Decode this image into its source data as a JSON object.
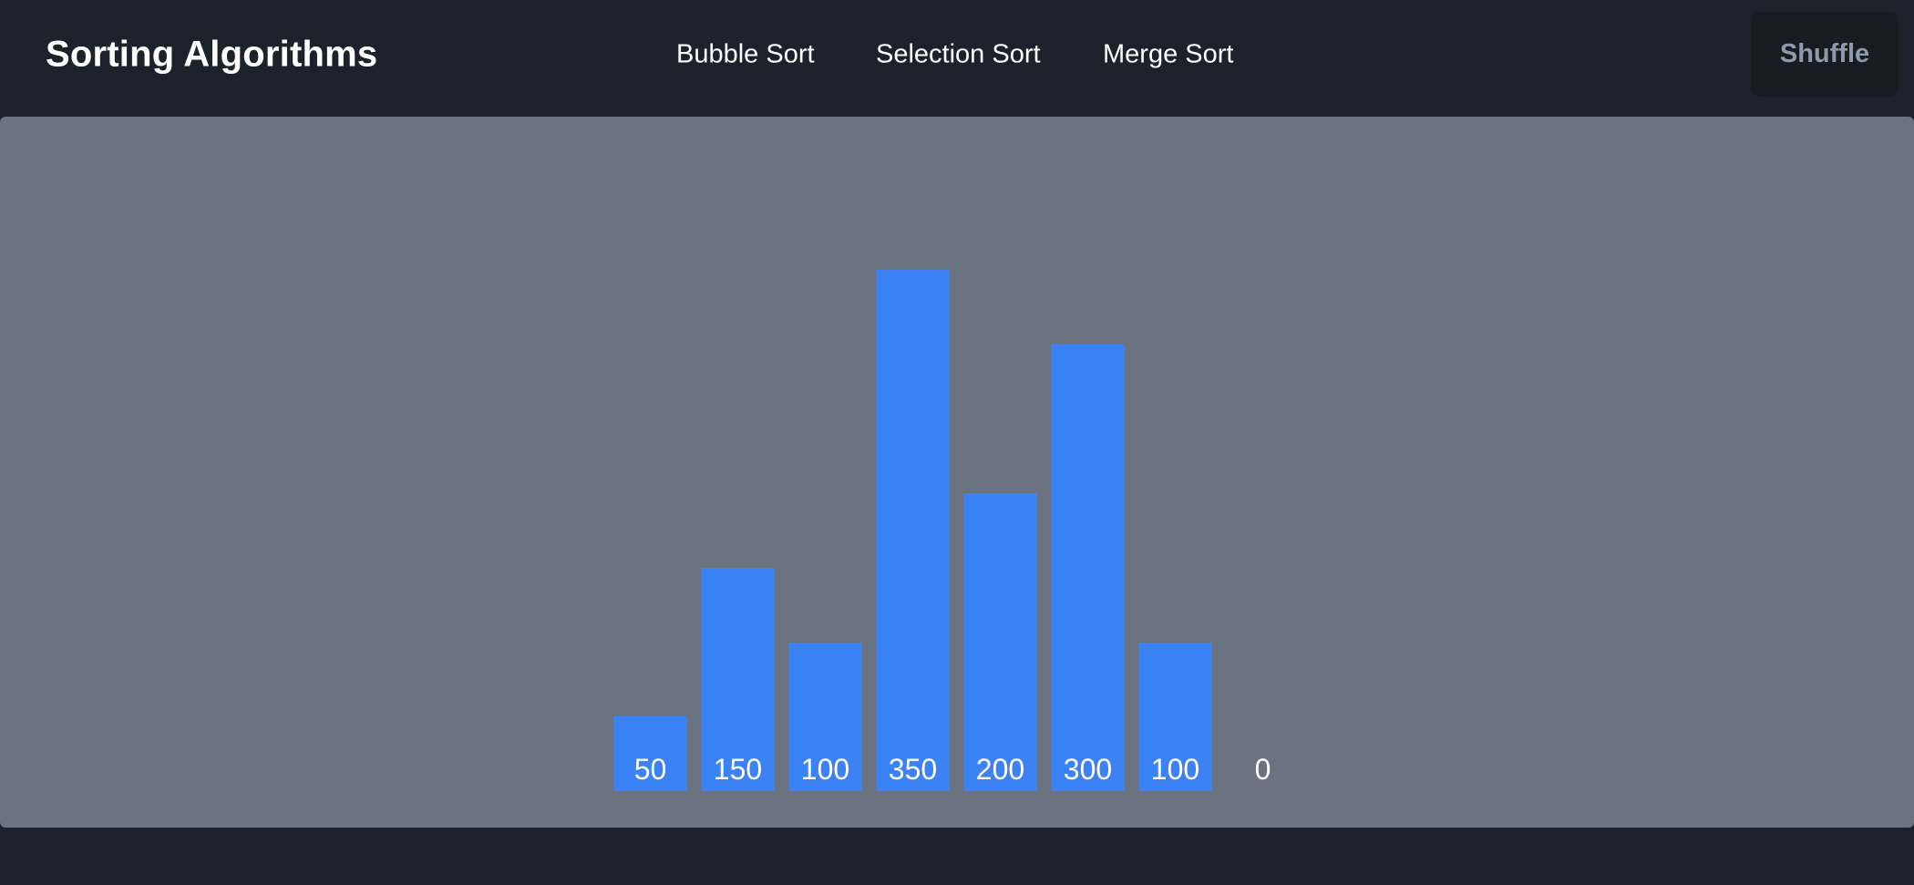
{
  "header": {
    "title": "Sorting Algorithms",
    "nav": [
      {
        "label": "Bubble Sort"
      },
      {
        "label": "Selection Sort"
      },
      {
        "label": "Merge Sort"
      }
    ],
    "shuffle_label": "Shuffle"
  },
  "colors": {
    "background": "#1c222c",
    "canvas": "#6b7280",
    "bar": "#3b82f6",
    "shuffle_button_bg": "#181c21",
    "shuffle_button_text": "#8e99ac"
  },
  "chart_data": {
    "type": "bar",
    "values": [
      50,
      150,
      100,
      350,
      200,
      300,
      100,
      0
    ],
    "labels": [
      "50",
      "150",
      "100",
      "350",
      "200",
      "300",
      "100",
      "0"
    ],
    "ylim": [
      0,
      350
    ]
  }
}
